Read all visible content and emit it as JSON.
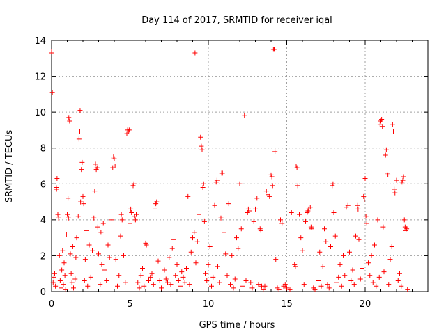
{
  "chart_data": {
    "type": "scatter",
    "title": "Day 114 of 2017, SRMTID for receiver iqal",
    "xlabel": "GPS time / hours",
    "ylabel": "SRMTID / TECUs",
    "xlim": [
      0,
      24
    ],
    "ylim": [
      0,
      14
    ],
    "xticks": [
      0,
      5,
      10,
      15,
      20
    ],
    "yticks": [
      0,
      2,
      4,
      6,
      8,
      10,
      12,
      14
    ],
    "grid": true,
    "marker": "+",
    "marker_color": "#ff0000",
    "series": [
      {
        "name": "SRMTID",
        "points": [
          [
            0.0,
            13.4
          ],
          [
            0.02,
            13.3
          ],
          [
            0.05,
            11.1
          ],
          [
            0.1,
            0.5
          ],
          [
            0.15,
            0.8
          ],
          [
            0.2,
            1.0
          ],
          [
            0.25,
            0.3
          ],
          [
            0.3,
            5.8
          ],
          [
            0.32,
            5.7
          ],
          [
            0.35,
            6.3
          ],
          [
            0.4,
            4.3
          ],
          [
            0.45,
            4.1
          ],
          [
            0.5,
            2.0
          ],
          [
            0.55,
            0.6
          ],
          [
            0.6,
            0.2
          ],
          [
            0.65,
            1.2
          ],
          [
            0.7,
            2.3
          ],
          [
            0.75,
            0.4
          ],
          [
            0.8,
            1.6
          ],
          [
            0.85,
            0.9
          ],
          [
            0.9,
            0.1
          ],
          [
            0.95,
            3.2
          ],
          [
            1.0,
            4.3
          ],
          [
            1.05,
            5.2
          ],
          [
            1.08,
            4.1
          ],
          [
            1.1,
            9.7
          ],
          [
            1.15,
            9.5
          ],
          [
            1.2,
            2.1
          ],
          [
            1.25,
            1.0
          ],
          [
            1.3,
            0.5
          ],
          [
            1.35,
            2.5
          ],
          [
            1.4,
            0.2
          ],
          [
            1.5,
            0.7
          ],
          [
            1.55,
            1.9
          ],
          [
            1.6,
            3.0
          ],
          [
            1.7,
            4.2
          ],
          [
            1.75,
            8.5
          ],
          [
            1.8,
            8.9
          ],
          [
            1.82,
            10.1
          ],
          [
            1.85,
            5.0
          ],
          [
            1.9,
            6.8
          ],
          [
            1.95,
            7.2
          ],
          [
            2.0,
            5.3
          ],
          [
            2.05,
            4.9
          ],
          [
            2.1,
            0.6
          ],
          [
            2.15,
            1.8
          ],
          [
            2.2,
            3.4
          ],
          [
            2.3,
            0.3
          ],
          [
            2.4,
            2.6
          ],
          [
            2.5,
            0.8
          ],
          [
            2.6,
            2.3
          ],
          [
            2.7,
            4.1
          ],
          [
            2.75,
            5.6
          ],
          [
            2.8,
            7.1
          ],
          [
            2.85,
            6.8
          ],
          [
            2.9,
            6.9
          ],
          [
            2.95,
            3.6
          ],
          [
            3.0,
            2.1
          ],
          [
            3.1,
            0.4
          ],
          [
            3.15,
            3.3
          ],
          [
            3.2,
            1.5
          ],
          [
            3.3,
            3.8
          ],
          [
            3.4,
            1.2
          ],
          [
            3.5,
            0.6
          ],
          [
            3.6,
            2.6
          ],
          [
            3.7,
            1.9
          ],
          [
            3.8,
            4.0
          ],
          [
            3.9,
            6.9
          ],
          [
            3.95,
            7.5
          ],
          [
            4.0,
            7.4
          ],
          [
            4.05,
            7.0
          ],
          [
            4.1,
            1.8
          ],
          [
            4.2,
            0.3
          ],
          [
            4.3,
            0.9
          ],
          [
            4.4,
            3.1
          ],
          [
            4.45,
            4.3
          ],
          [
            4.5,
            4.0
          ],
          [
            4.6,
            2.0
          ],
          [
            4.7,
            0.5
          ],
          [
            4.8,
            8.8
          ],
          [
            4.85,
            9.0
          ],
          [
            4.9,
            8.9
          ],
          [
            4.95,
            9.0
          ],
          [
            5.0,
            3.8
          ],
          [
            5.05,
            4.6
          ],
          [
            5.1,
            4.4
          ],
          [
            5.2,
            5.9
          ],
          [
            5.25,
            6.0
          ],
          [
            5.3,
            4.2
          ],
          [
            5.35,
            4.0
          ],
          [
            5.4,
            4.3
          ],
          [
            5.5,
            0.5
          ],
          [
            5.6,
            0.2
          ],
          [
            5.7,
            0.9
          ],
          [
            5.8,
            1.3
          ],
          [
            5.9,
            0.3
          ],
          [
            6.0,
            2.7
          ],
          [
            6.05,
            2.6
          ],
          [
            6.2,
            0.6
          ],
          [
            6.3,
            0.8
          ],
          [
            6.4,
            1.0
          ],
          [
            6.5,
            0.4
          ],
          [
            6.6,
            4.6
          ],
          [
            6.65,
            4.9
          ],
          [
            6.7,
            5.0
          ],
          [
            6.8,
            1.7
          ],
          [
            6.9,
            0.6
          ],
          [
            7.0,
            0.2
          ],
          [
            7.2,
            1.2
          ],
          [
            7.3,
            0.7
          ],
          [
            7.4,
            0.5
          ],
          [
            7.5,
            1.9
          ],
          [
            7.6,
            0.4
          ],
          [
            7.7,
            2.4
          ],
          [
            7.8,
            2.9
          ],
          [
            7.9,
            0.9
          ],
          [
            8.0,
            1.5
          ],
          [
            8.1,
            0.6
          ],
          [
            8.2,
            0.3
          ],
          [
            8.3,
            1.1
          ],
          [
            8.4,
            0.8
          ],
          [
            8.5,
            0.5
          ],
          [
            8.6,
            1.3
          ],
          [
            8.7,
            5.3
          ],
          [
            8.8,
            0.4
          ],
          [
            8.9,
            2.2
          ],
          [
            9.0,
            3.0
          ],
          [
            9.1,
            3.3
          ],
          [
            9.15,
            13.3
          ],
          [
            9.2,
            1.6
          ],
          [
            9.3,
            2.8
          ],
          [
            9.4,
            4.3
          ],
          [
            9.5,
            8.6
          ],
          [
            9.55,
            8.1
          ],
          [
            9.6,
            7.9
          ],
          [
            9.65,
            5.8
          ],
          [
            9.7,
            6.0
          ],
          [
            9.75,
            3.9
          ],
          [
            9.8,
            1.0
          ],
          [
            9.9,
            0.6
          ],
          [
            10.0,
            1.5
          ],
          [
            10.1,
            2.5
          ],
          [
            10.2,
            0.3
          ],
          [
            10.3,
            0.8
          ],
          [
            10.4,
            4.8
          ],
          [
            10.5,
            6.1
          ],
          [
            10.55,
            6.2
          ],
          [
            10.6,
            1.4
          ],
          [
            10.7,
            0.5
          ],
          [
            10.8,
            4.1
          ],
          [
            10.85,
            6.6
          ],
          [
            10.9,
            6.6
          ],
          [
            11.0,
            3.3
          ],
          [
            11.1,
            2.1
          ],
          [
            11.2,
            0.9
          ],
          [
            11.3,
            4.9
          ],
          [
            11.4,
            0.4
          ],
          [
            11.5,
            2.0
          ],
          [
            11.6,
            0.2
          ],
          [
            11.7,
            0.7
          ],
          [
            11.8,
            3.0
          ],
          [
            11.9,
            2.4
          ],
          [
            12.0,
            6.0
          ],
          [
            12.1,
            3.5
          ],
          [
            12.2,
            0.3
          ],
          [
            12.3,
            9.8
          ],
          [
            12.4,
            0.6
          ],
          [
            12.5,
            4.4
          ],
          [
            12.55,
            4.6
          ],
          [
            12.6,
            4.5
          ],
          [
            12.7,
            0.5
          ],
          [
            12.8,
            0.2
          ],
          [
            12.9,
            3.9
          ],
          [
            13.0,
            4.6
          ],
          [
            13.1,
            5.2
          ],
          [
            13.2,
            0.4
          ],
          [
            13.3,
            3.5
          ],
          [
            13.35,
            3.4
          ],
          [
            13.4,
            0.3
          ],
          [
            13.5,
            0.1
          ],
          [
            13.6,
            0.3
          ],
          [
            13.7,
            5.6
          ],
          [
            13.8,
            5.4
          ],
          [
            13.9,
            5.3
          ],
          [
            14.0,
            6.5
          ],
          [
            14.05,
            6.4
          ],
          [
            14.1,
            5.9
          ],
          [
            14.15,
            13.5
          ],
          [
            14.2,
            13.5
          ],
          [
            14.25,
            7.8
          ],
          [
            14.3,
            1.8
          ],
          [
            14.4,
            0.2
          ],
          [
            14.5,
            0.1
          ],
          [
            14.6,
            4.0
          ],
          [
            14.7,
            3.8
          ],
          [
            14.8,
            0.3
          ],
          [
            14.9,
            0.4
          ],
          [
            15.0,
            0.2
          ],
          [
            15.2,
            0.1
          ],
          [
            15.3,
            4.4
          ],
          [
            15.4,
            3.2
          ],
          [
            15.5,
            1.5
          ],
          [
            15.55,
            1.4
          ],
          [
            15.6,
            7.0
          ],
          [
            15.65,
            6.9
          ],
          [
            15.7,
            5.9
          ],
          [
            15.8,
            4.3
          ],
          [
            15.9,
            3.0
          ],
          [
            16.0,
            2.3
          ],
          [
            16.1,
            0.4
          ],
          [
            16.2,
            3.9
          ],
          [
            16.3,
            4.4
          ],
          [
            16.35,
            4.5
          ],
          [
            16.4,
            4.6
          ],
          [
            16.5,
            4.7
          ],
          [
            16.55,
            3.6
          ],
          [
            16.6,
            3.5
          ],
          [
            16.7,
            0.2
          ],
          [
            16.8,
            0.1
          ],
          [
            17.0,
            0.6
          ],
          [
            17.1,
            2.2
          ],
          [
            17.2,
            0.3
          ],
          [
            17.3,
            1.4
          ],
          [
            17.4,
            3.5
          ],
          [
            17.5,
            2.8
          ],
          [
            17.6,
            0.4
          ],
          [
            17.7,
            0.2
          ],
          [
            17.8,
            2.5
          ],
          [
            17.9,
            5.9
          ],
          [
            17.95,
            6.0
          ],
          [
            18.0,
            4.4
          ],
          [
            18.1,
            3.1
          ],
          [
            18.2,
            0.5
          ],
          [
            18.3,
            0.8
          ],
          [
            18.4,
            1.5
          ],
          [
            18.5,
            0.3
          ],
          [
            18.6,
            2.0
          ],
          [
            18.7,
            0.9
          ],
          [
            18.8,
            4.7
          ],
          [
            18.9,
            4.8
          ],
          [
            19.0,
            2.2
          ],
          [
            19.1,
            0.6
          ],
          [
            19.2,
            1.2
          ],
          [
            19.3,
            0.4
          ],
          [
            19.4,
            3.1
          ],
          [
            19.5,
            4.8
          ],
          [
            19.55,
            4.6
          ],
          [
            19.6,
            2.9
          ],
          [
            19.7,
            0.7
          ],
          [
            19.8,
            1.3
          ],
          [
            19.9,
            5.3
          ],
          [
            19.95,
            5.1
          ],
          [
            20.0,
            6.3
          ],
          [
            20.05,
            4.2
          ],
          [
            20.1,
            3.8
          ],
          [
            20.2,
            1.6
          ],
          [
            20.3,
            0.9
          ],
          [
            20.4,
            2.0
          ],
          [
            20.5,
            0.5
          ],
          [
            20.6,
            2.6
          ],
          [
            20.7,
            0.3
          ],
          [
            20.8,
            4.0
          ],
          [
            20.9,
            0.8
          ],
          [
            20.95,
            9.3
          ],
          [
            21.0,
            9.5
          ],
          [
            21.05,
            9.6
          ],
          [
            21.1,
            9.2
          ],
          [
            21.15,
            3.6
          ],
          [
            21.2,
            1.1
          ],
          [
            21.3,
            7.6
          ],
          [
            21.35,
            7.9
          ],
          [
            21.4,
            6.6
          ],
          [
            21.45,
            6.5
          ],
          [
            21.5,
            0.4
          ],
          [
            21.6,
            1.8
          ],
          [
            21.7,
            2.5
          ],
          [
            21.75,
            9.3
          ],
          [
            21.8,
            8.9
          ],
          [
            21.85,
            5.7
          ],
          [
            21.9,
            5.5
          ],
          [
            22.0,
            6.2
          ],
          [
            22.1,
            0.6
          ],
          [
            22.2,
            1.0
          ],
          [
            22.3,
            0.3
          ],
          [
            22.35,
            6.1
          ],
          [
            22.4,
            6.2
          ],
          [
            22.45,
            6.4
          ],
          [
            22.5,
            4.0
          ],
          [
            22.55,
            3.6
          ],
          [
            22.6,
            3.4
          ],
          [
            22.65,
            3.5
          ],
          [
            22.7,
            0.1
          ]
        ]
      }
    ]
  }
}
